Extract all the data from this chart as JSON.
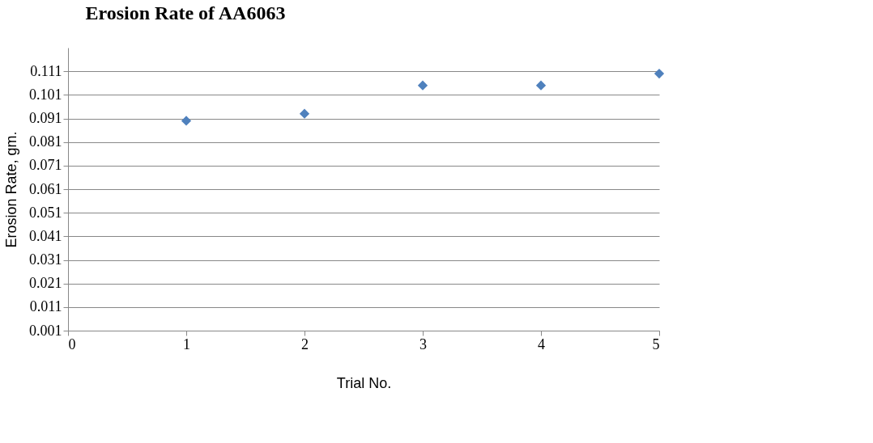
{
  "chart_data": {
    "type": "scatter",
    "title": "Erosion Rate of AA6063",
    "xlabel": "Trial No.",
    "ylabel": "Erosion Rate, gm.",
    "x": [
      1,
      2,
      3,
      4,
      5
    ],
    "series": [
      {
        "color": "#4f81bd",
        "values": [
          0.09,
          0.093,
          0.105,
          0.105,
          0.11
        ]
      }
    ],
    "xlim": [
      0,
      5
    ],
    "xticks": [
      0,
      1,
      2,
      3,
      4,
      5
    ],
    "ylim": [
      0.001,
      0.121
    ],
    "yticks": [
      0.001,
      0.011,
      0.021,
      0.031,
      0.041,
      0.051,
      0.061,
      0.071,
      0.081,
      0.091,
      0.101,
      0.111
    ],
    "grid": "y",
    "legend": false,
    "marker": "diamond"
  }
}
